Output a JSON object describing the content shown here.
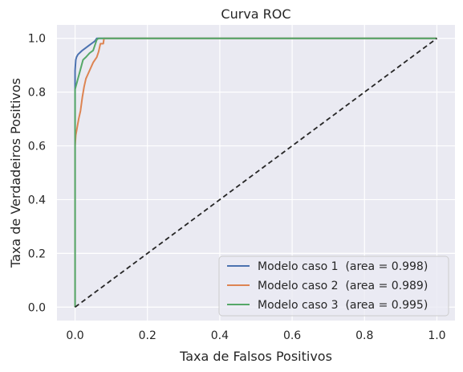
{
  "chart_data": {
    "type": "line",
    "title": "Curva ROC",
    "xlabel": "Taxa de Falsos Positivos",
    "ylabel": "Taxa de Verdadeiros Positivos",
    "xlim": [
      -0.05,
      1.05
    ],
    "ylim": [
      -0.05,
      1.05
    ],
    "xticks": [
      0.0,
      0.2,
      0.4,
      0.6,
      0.8,
      1.0
    ],
    "yticks": [
      0.0,
      0.2,
      0.4,
      0.6,
      0.8,
      1.0
    ],
    "xtick_labels": [
      "0.0",
      "0.2",
      "0.4",
      "0.6",
      "0.8",
      "1.0"
    ],
    "ytick_labels": [
      "0.0",
      "0.2",
      "0.4",
      "0.6",
      "0.8",
      "1.0"
    ],
    "grid": true,
    "background": "#eaeaf2",
    "legend_position": "lower-right",
    "series": [
      {
        "name": "Modelo caso 1  (area = 0.998)",
        "color": "#4c72b0",
        "x": [
          0.0,
          0.0,
          0.0,
          0.002,
          0.004,
          0.008,
          0.012,
          0.02,
          0.03,
          0.04,
          0.05,
          0.055,
          0.06,
          0.07,
          1.0
        ],
        "y": [
          0.0,
          0.6,
          0.88,
          0.92,
          0.93,
          0.94,
          0.945,
          0.955,
          0.965,
          0.975,
          0.985,
          0.99,
          1.0,
          1.0,
          1.0
        ]
      },
      {
        "name": "Modelo caso 2  (area = 0.989)",
        "color": "#dd8452",
        "x": [
          0.0,
          0.0,
          0.002,
          0.006,
          0.01,
          0.015,
          0.02,
          0.025,
          0.03,
          0.04,
          0.05,
          0.06,
          0.065,
          0.07,
          0.075,
          0.078,
          0.08,
          1.0
        ],
        "y": [
          0.0,
          0.6,
          0.64,
          0.67,
          0.7,
          0.73,
          0.78,
          0.82,
          0.85,
          0.88,
          0.91,
          0.93,
          0.95,
          0.98,
          0.98,
          0.98,
          1.0,
          1.0
        ]
      },
      {
        "name": "Modelo caso 3  (area = 0.995)",
        "color": "#55a868",
        "x": [
          0.0,
          0.0,
          0.0,
          0.004,
          0.008,
          0.012,
          0.018,
          0.022,
          0.03,
          0.04,
          0.05,
          0.055,
          0.06,
          0.065,
          1.0
        ],
        "y": [
          0.0,
          0.6,
          0.81,
          0.83,
          0.85,
          0.87,
          0.9,
          0.92,
          0.93,
          0.945,
          0.955,
          0.975,
          0.995,
          1.0,
          1.0
        ]
      }
    ],
    "reference_line": {
      "x": [
        0.0,
        1.0
      ],
      "y": [
        0.0,
        1.0
      ],
      "color": "#262626",
      "style": "dashed"
    }
  }
}
